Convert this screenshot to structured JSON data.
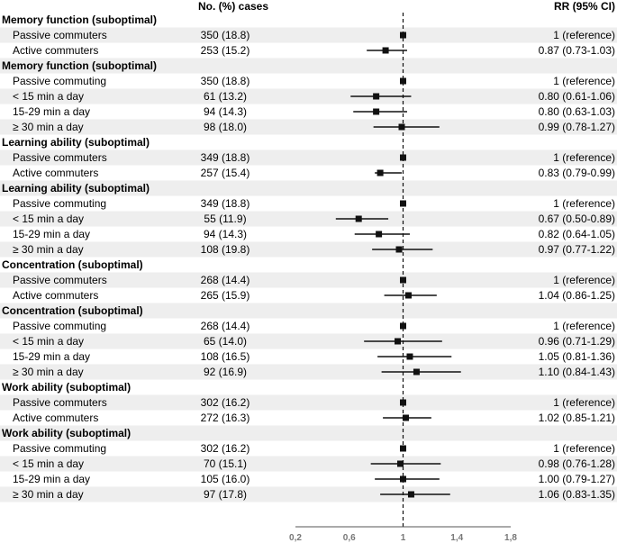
{
  "chart_data": {
    "type": "forest",
    "headers": {
      "cases": "No. (%) cases",
      "rr": "RR (95% CI)"
    },
    "xaxis": {
      "min": 0.2,
      "max": 1.8,
      "ticks": [
        "0,2",
        "0,6",
        "1",
        "1,4",
        "1,8"
      ],
      "tick_values": [
        0.2,
        0.6,
        1.0,
        1.4,
        1.8
      ],
      "reference_line": 1.0
    },
    "groups": [
      {
        "title": "Memory function (suboptimal)",
        "rows": [
          {
            "label": "Passive commuters",
            "cases": "350 (18.8)",
            "rr_text": "1 (reference)",
            "rr": 1.0,
            "lo": null,
            "hi": null
          },
          {
            "label": "Active commuters",
            "cases": "253 (15.2)",
            "rr_text": "0.87 (0.73-1.03)",
            "rr": 0.87,
            "lo": 0.73,
            "hi": 1.03
          }
        ]
      },
      {
        "title": "Memory function (suboptimal)",
        "rows": [
          {
            "label": "Passive commuting",
            "cases": "350 (18.8)",
            "rr_text": "1 (reference)",
            "rr": 1.0,
            "lo": null,
            "hi": null
          },
          {
            "label": "< 15 min a day",
            "cases": "61 (13.2)",
            "rr_text": "0.80 (0.61-1.06)",
            "rr": 0.8,
            "lo": 0.61,
            "hi": 1.06
          },
          {
            "label": "15-29 min a day",
            "cases": "94 (14.3)",
            "rr_text": "0.80 (0.63-1.03)",
            "rr": 0.8,
            "lo": 0.63,
            "hi": 1.03
          },
          {
            "label": "≥ 30 min a day",
            "cases": "98 (18.0)",
            "rr_text": "0.99 (0.78-1.27)",
            "rr": 0.99,
            "lo": 0.78,
            "hi": 1.27
          }
        ]
      },
      {
        "title": "Learning ability (suboptimal)",
        "rows": [
          {
            "label": "Passive commuters",
            "cases": "349 (18.8)",
            "rr_text": "1 (reference)",
            "rr": 1.0,
            "lo": null,
            "hi": null
          },
          {
            "label": "Active commuters",
            "cases": "257 (15.4)",
            "rr_text": "0.83 (0.79-0.99)",
            "rr": 0.83,
            "lo": 0.79,
            "hi": 0.99
          }
        ]
      },
      {
        "title": "Learning ability (suboptimal)",
        "rows": [
          {
            "label": "Passive commuting",
            "cases": "349 (18.8)",
            "rr_text": "1 (reference)",
            "rr": 1.0,
            "lo": null,
            "hi": null
          },
          {
            "label": "< 15 min a day",
            "cases": "55 (11.9)",
            "rr_text": "0.67 (0.50-0.89)",
            "rr": 0.67,
            "lo": 0.5,
            "hi": 0.89
          },
          {
            "label": "15-29 min a day",
            "cases": "94 (14.3)",
            "rr_text": "0.82 (0.64-1.05)",
            "rr": 0.82,
            "lo": 0.64,
            "hi": 1.05
          },
          {
            "label": "≥ 30 min a day",
            "cases": "108 (19.8)",
            "rr_text": "0.97 (0.77-1.22)",
            "rr": 0.97,
            "lo": 0.77,
            "hi": 1.22
          }
        ]
      },
      {
        "title": "Concentration (suboptimal)",
        "rows": [
          {
            "label": "Passive commuters",
            "cases": "268 (14.4)",
            "rr_text": "1 (reference)",
            "rr": 1.0,
            "lo": null,
            "hi": null
          },
          {
            "label": "Active commuters",
            "cases": "265 (15.9)",
            "rr_text": "1.04 (0.86-1.25)",
            "rr": 1.04,
            "lo": 0.86,
            "hi": 1.25
          }
        ]
      },
      {
        "title": "Concentration (suboptimal)",
        "rows": [
          {
            "label": "Passive commuting",
            "cases": "268 (14.4)",
            "rr_text": "1 (reference)",
            "rr": 1.0,
            "lo": null,
            "hi": null
          },
          {
            "label": "< 15 min a day",
            "cases": "65 (14.0)",
            "rr_text": "0.96 (0.71-1.29)",
            "rr": 0.96,
            "lo": 0.71,
            "hi": 1.29
          },
          {
            "label": "15-29 min a day",
            "cases": "108 (16.5)",
            "rr_text": "1.05 (0.81-1.36)",
            "rr": 1.05,
            "lo": 0.81,
            "hi": 1.36
          },
          {
            "label": "≥ 30 min a day",
            "cases": "92 (16.9)",
            "rr_text": "1.10 (0.84-1.43)",
            "rr": 1.1,
            "lo": 0.84,
            "hi": 1.43
          }
        ]
      },
      {
        "title": "Work ability (suboptimal)",
        "rows": [
          {
            "label": "Passive commuters",
            "cases": "302 (16.2)",
            "rr_text": "1 (reference)",
            "rr": 1.0,
            "lo": null,
            "hi": null
          },
          {
            "label": "Active commuters",
            "cases": "272 (16.3)",
            "rr_text": "1.02 (0.85-1.21)",
            "rr": 1.02,
            "lo": 0.85,
            "hi": 1.21
          }
        ]
      },
      {
        "title": "Work ability (suboptimal)",
        "rows": [
          {
            "label": "Passive commuting",
            "cases": "302 (16.2)",
            "rr_text": "1 (reference)",
            "rr": 1.0,
            "lo": null,
            "hi": null
          },
          {
            "label": "< 15 min a day",
            "cases": "70 (15.1)",
            "rr_text": "0.98 (0.76-1.28)",
            "rr": 0.98,
            "lo": 0.76,
            "hi": 1.28
          },
          {
            "label": "15-29 min a day",
            "cases": "105 (16.0)",
            "rr_text": "1.00 (0.79-1.27)",
            "rr": 1.0,
            "lo": 0.79,
            "hi": 1.27
          },
          {
            "label": "≥ 30 min a day",
            "cases": "97 (17.8)",
            "rr_text": "1.06 (0.83-1.35)",
            "rr": 1.06,
            "lo": 0.83,
            "hi": 1.35
          }
        ]
      }
    ]
  }
}
